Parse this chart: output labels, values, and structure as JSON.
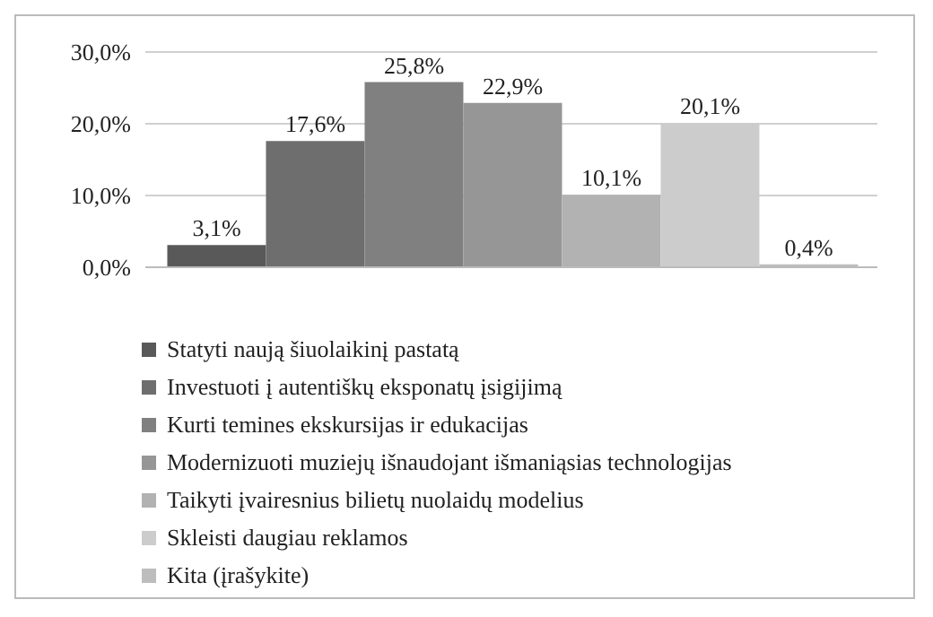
{
  "chart_data": {
    "type": "bar",
    "categories": [
      null
    ],
    "series": [
      {
        "name": "Statyti naują šiuolaikinį pastatą",
        "color": "#595959",
        "values": [
          3.1
        ],
        "value_labels": [
          "3,1%"
        ]
      },
      {
        "name": "Investuoti į autentiškų eksponatų įsigijimą",
        "color": "#6e6e6e",
        "values": [
          17.6
        ],
        "value_labels": [
          "17,6%"
        ]
      },
      {
        "name": "Kurti temines ekskursijas ir edukacijas",
        "color": "#808080",
        "values": [
          25.8
        ],
        "value_labels": [
          "25,8%"
        ]
      },
      {
        "name": "Modernizuoti muziejų išnaudojant išmaniąsias technologijas",
        "color": "#969696",
        "values": [
          22.9
        ],
        "value_labels": [
          "22,9%"
        ]
      },
      {
        "name": "Taikyti įvairesnius bilietų nuolaidų modelius",
        "color": "#b2b2b2",
        "values": [
          10.1
        ],
        "value_labels": [
          "10,1%"
        ]
      },
      {
        "name": "Skleisti daugiau reklamos",
        "color": "#cccccc",
        "values": [
          20.1
        ],
        "value_labels": [
          "20,1%"
        ]
      },
      {
        "name": "Kita (įrašykite)",
        "color": "#bdbdbd",
        "values": [
          0.4
        ],
        "value_labels": [
          "0,4%"
        ]
      }
    ],
    "ylim": [
      0,
      30
    ],
    "yticks": [
      {
        "value": 0,
        "label": "0,0%"
      },
      {
        "value": 10,
        "label": "10,0%"
      },
      {
        "value": 20,
        "label": "20,0%"
      },
      {
        "value": 30,
        "label": "30,0%"
      }
    ],
    "grid": "y",
    "legend": "bottom"
  }
}
